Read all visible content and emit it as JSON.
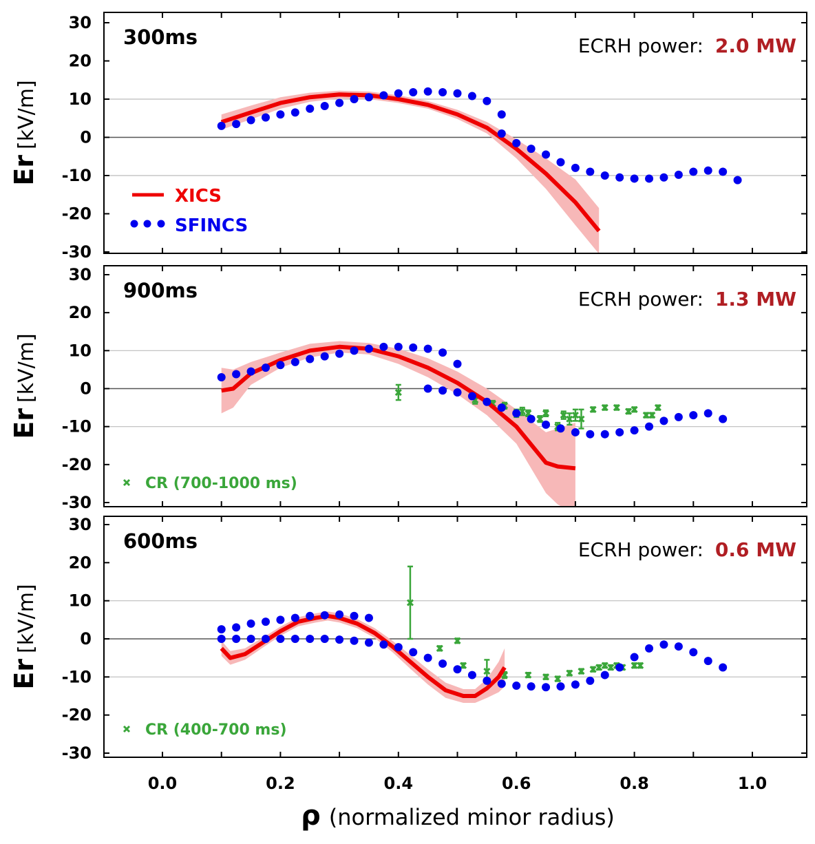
{
  "colors": {
    "xics": "#ee0000",
    "xics_band": "#f7b8b8",
    "sfincs": "#0000ee",
    "cr": "#3aa63a",
    "power_value": "#b01e23",
    "gridline": "#bbbbbb",
    "zeroline": "#555555"
  },
  "x_axis": {
    "label_symbol": "ρ",
    "label_text": "(normalized minor radius)",
    "ticks": [
      "0.0",
      "0.2",
      "0.4",
      "0.6",
      "0.8",
      "1.0"
    ]
  },
  "y_axis_label": {
    "bold": "Er",
    "unit": "[kV/m]"
  },
  "legend": {
    "xics": "XICS",
    "sfincs": "SFINCS"
  },
  "chart_data": [
    {
      "type": "line",
      "time_label": "300ms",
      "power_label": "ECRH power:",
      "power_value": "2.0 MW",
      "xlim": [
        -0.1,
        1.1
      ],
      "ylim": [
        -30,
        30
      ],
      "yticks": [
        30,
        20,
        10,
        0,
        -10,
        -20,
        -30
      ],
      "grid": "horizontal at ±10, 0",
      "legend_placement": "left",
      "xics": {
        "name": "XICS",
        "x": [
          0.1,
          0.15,
          0.2,
          0.25,
          0.3,
          0.35,
          0.4,
          0.45,
          0.5,
          0.55,
          0.6,
          0.65,
          0.7,
          0.74
        ],
        "y": [
          4,
          6.5,
          9,
          10.5,
          11.2,
          11,
          10,
          8.5,
          6,
          2.5,
          -3,
          -9.5,
          -17,
          -24.5
        ],
        "band_halfwidth": [
          2,
          1.8,
          1.5,
          1.2,
          1,
          1,
          1,
          1,
          1.2,
          1.5,
          2.5,
          4,
          6,
          6
        ]
      },
      "sfincs": {
        "name": "SFINCS",
        "x": [
          0.1,
          0.125,
          0.15,
          0.175,
          0.2,
          0.225,
          0.25,
          0.275,
          0.3,
          0.325,
          0.35,
          0.375,
          0.4,
          0.425,
          0.45,
          0.475,
          0.5,
          0.525,
          0.55,
          0.575,
          0.575,
          0.6,
          0.625,
          0.65,
          0.675,
          0.7,
          0.725,
          0.75,
          0.775,
          0.8,
          0.825,
          0.85,
          0.875,
          0.9,
          0.925,
          0.95,
          0.975
        ],
        "y": [
          3,
          3.5,
          4.5,
          5.2,
          6,
          6.5,
          7.5,
          8.2,
          9,
          10,
          10.5,
          11,
          11.5,
          11.8,
          12,
          11.8,
          11.5,
          10.8,
          9.5,
          6,
          1,
          -1.5,
          -3,
          -4.5,
          -6.5,
          -8,
          -9,
          -10,
          -10.5,
          -10.8,
          -10.8,
          -10.5,
          -9.8,
          -9,
          -8.7,
          -9,
          -11.2
        ]
      },
      "cr": null
    },
    {
      "type": "line",
      "time_label": "900ms",
      "power_label": "ECRH power:",
      "power_value": "1.3 MW",
      "xlim": [
        -0.1,
        1.1
      ],
      "ylim": [
        -30,
        30
      ],
      "yticks": [
        30,
        20,
        10,
        0,
        -10,
        -20,
        -30
      ],
      "grid": "horizontal at ±10, 0",
      "legend_placement": "bottom-left",
      "xics": {
        "name": "XICS",
        "x": [
          0.1,
          0.12,
          0.15,
          0.2,
          0.25,
          0.3,
          0.35,
          0.4,
          0.45,
          0.5,
          0.55,
          0.6,
          0.65,
          0.67,
          0.7
        ],
        "y": [
          -0.5,
          0,
          4,
          7.5,
          10,
          11,
          10.5,
          8.5,
          5.5,
          1.5,
          -3.5,
          -10,
          -19.5,
          -20.5,
          -21
        ],
        "band_halfwidth": [
          6,
          5,
          3,
          2,
          1.8,
          1.5,
          1.5,
          2,
          2.5,
          3,
          3.5,
          4.5,
          8,
          10,
          12
        ]
      },
      "sfincs": {
        "name": "SFINCS",
        "x": [
          0.1,
          0.125,
          0.15,
          0.175,
          0.2,
          0.225,
          0.25,
          0.275,
          0.3,
          0.325,
          0.35,
          0.375,
          0.4,
          0.425,
          0.45,
          0.475,
          0.5,
          0.45,
          0.475,
          0.5,
          0.525,
          0.55,
          0.575,
          0.6,
          0.625,
          0.65,
          0.675,
          0.7,
          0.725,
          0.75,
          0.775,
          0.8,
          0.825,
          0.85,
          0.875,
          0.9,
          0.925,
          0.95
        ],
        "y": [
          3,
          3.8,
          4.5,
          5.5,
          6.2,
          7,
          7.8,
          8.5,
          9.2,
          10,
          10.5,
          11,
          11,
          10.8,
          10.5,
          9.5,
          6.5,
          0,
          -0.5,
          -1,
          -2,
          -3.5,
          -5,
          -6.5,
          -8,
          -9.5,
          -10.5,
          -11.5,
          -12,
          -12,
          -11.5,
          -11,
          -10,
          -8.5,
          -7.5,
          -7,
          -6.5,
          -8
        ]
      },
      "cr": {
        "name": "CR  (700-1000 ms)",
        "x": [
          0.4,
          0.53,
          0.56,
          0.58,
          0.6,
          0.61,
          0.62,
          0.64,
          0.65,
          0.67,
          0.68,
          0.69,
          0.7,
          0.71,
          0.73,
          0.75,
          0.77,
          0.79,
          0.8,
          0.82,
          0.83,
          0.84
        ],
        "y": [
          -1,
          -3,
          -4,
          -4.5,
          -6.5,
          -6,
          -6.5,
          -8,
          -6.5,
          -10,
          -7,
          -8,
          -7,
          -8,
          -5.5,
          -5,
          -5,
          -6,
          -5.5,
          -7,
          -7,
          -5
        ],
        "yerr": [
          2,
          1,
          0.8,
          0.8,
          1,
          1,
          0.8,
          0.8,
          0.8,
          1,
          1,
          1.5,
          1.5,
          2.5,
          0.6,
          0.6,
          0.6,
          0.6,
          0.6,
          0.6,
          0.6,
          0.6
        ]
      }
    },
    {
      "type": "line",
      "time_label": "600ms",
      "power_label": "ECRH power:",
      "power_value": "0.6 MW",
      "xlim": [
        -0.1,
        1.1
      ],
      "ylim": [
        -30,
        30
      ],
      "yticks": [
        30,
        20,
        10,
        0,
        -10,
        -20,
        -30
      ],
      "grid": "horizontal at ±10, 0",
      "legend_placement": "bottom-left",
      "xics": {
        "name": "XICS",
        "x": [
          0.1,
          0.115,
          0.14,
          0.17,
          0.2,
          0.23,
          0.26,
          0.28,
          0.3,
          0.33,
          0.36,
          0.39,
          0.42,
          0.45,
          0.48,
          0.51,
          0.53,
          0.55,
          0.57,
          0.58
        ],
        "y": [
          -2.5,
          -5,
          -4,
          -1,
          2,
          4.5,
          5.5,
          6,
          5.5,
          4,
          1.5,
          -2,
          -6,
          -10,
          -13.5,
          -15,
          -15,
          -13,
          -10,
          -7.5
        ],
        "band_halfwidth": [
          2,
          1.8,
          1.5,
          1.3,
          1.2,
          1.2,
          1.2,
          1.2,
          1.2,
          1.2,
          1.3,
          1.5,
          1.8,
          2,
          2,
          1.8,
          1.8,
          2.5,
          4,
          5
        ]
      },
      "sfincs": {
        "name": "SFINCS",
        "x": [
          0.1,
          0.125,
          0.15,
          0.175,
          0.2,
          0.225,
          0.25,
          0.275,
          0.3,
          0.325,
          0.35,
          0.1,
          0.125,
          0.15,
          0.175,
          0.2,
          0.225,
          0.25,
          0.275,
          0.3,
          0.325,
          0.35,
          0.375,
          0.4,
          0.425,
          0.45,
          0.475,
          0.5,
          0.525,
          0.55,
          0.575,
          0.6,
          0.625,
          0.65,
          0.675,
          0.7,
          0.725,
          0.75,
          0.775,
          0.8,
          0.825,
          0.85,
          0.875,
          0.9,
          0.925,
          0.95
        ],
        "y": [
          2.5,
          3,
          4,
          4.5,
          5,
          5.5,
          6,
          6.2,
          6.4,
          6,
          5.5,
          0,
          0,
          0,
          0,
          0,
          0,
          0,
          0,
          -0.2,
          -0.5,
          -1,
          -1.5,
          -2.2,
          -3.5,
          -5,
          -6.5,
          -8,
          -9.5,
          -11,
          -11.8,
          -12.3,
          -12.5,
          -12.7,
          -12.5,
          -12,
          -11,
          -9.5,
          -7.5,
          -4.8,
          -2.5,
          -1.5,
          -2,
          -3.5,
          -5.8,
          -7.5
        ]
      },
      "cr": {
        "name": "CR  (400-700 ms)",
        "x": [
          0.42,
          0.47,
          0.5,
          0.51,
          0.55,
          0.58,
          0.62,
          0.65,
          0.67,
          0.69,
          0.71,
          0.73,
          0.74,
          0.75,
          0.76,
          0.77,
          0.78,
          0.8,
          0.81
        ],
        "y": [
          9.5,
          -2.5,
          -0.5,
          -7,
          -8.5,
          -9.5,
          -9.5,
          -10,
          -10.5,
          -9,
          -8.5,
          -8,
          -7.5,
          -7,
          -7.5,
          -7,
          -7.5,
          -7,
          -7
        ],
        "yerr": [
          9.5,
          0.6,
          0.6,
          0.6,
          3,
          0.8,
          0.6,
          0.6,
          0.6,
          0.6,
          0.6,
          0.6,
          0.6,
          0.6,
          0.6,
          0.6,
          0.6,
          0.6,
          0.6
        ]
      }
    }
  ]
}
